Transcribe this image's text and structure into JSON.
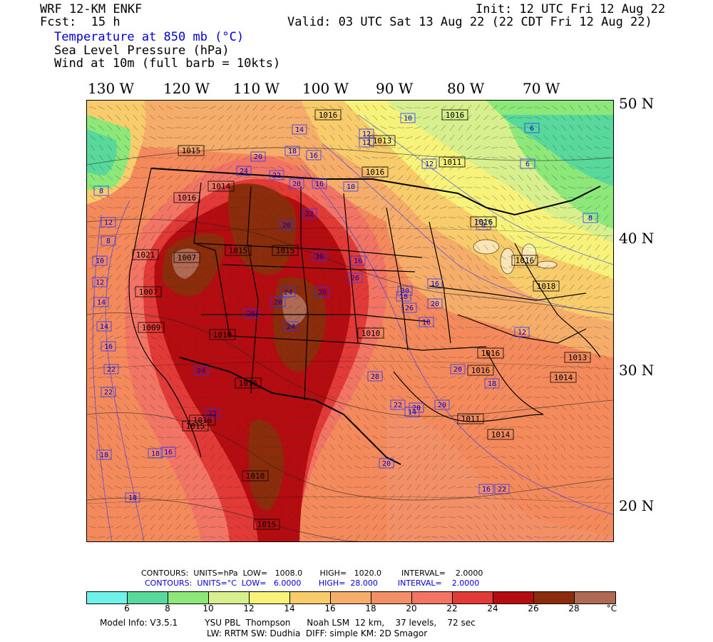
{
  "header": {
    "model": "WRF 12-KM ENKF",
    "fcst": "Fcst:  15 h",
    "init": "Init: 12 UTC Fri 12 Aug 22",
    "valid": "Valid: 03 UTC Sat 13 Aug 22 (22 CDT Fri 12 Aug 22)",
    "field1": "Temperature at 850 mb (°C)",
    "field2": "Sea Level Pressure (hPa)",
    "field3": "Wind at 10m (full barb = 10kts)"
  },
  "axes": {
    "lon_labels": [
      "130 W",
      "120 W",
      "110 W",
      "100 W",
      "90 W",
      "80 W",
      "70 W"
    ],
    "lat_labels": [
      "50 N",
      "40 N",
      "30 N",
      "20 N"
    ]
  },
  "map_labels": {
    "pressure_boxes": [
      "1016",
      "1016",
      "1015",
      "1013",
      "1014",
      "1016",
      "1016",
      "1011",
      "1016",
      "1021",
      "1007",
      "1015",
      "1015",
      "1007",
      "1009",
      "1010",
      "1010",
      "1016",
      "1018",
      "1016",
      "1013",
      "1016",
      "1016",
      "1016",
      "1014",
      "1015",
      "1010",
      "1015",
      "1011",
      "1014"
    ],
    "temp_boxes": [
      "10",
      "14",
      "12",
      "10",
      "6",
      "6",
      "8",
      "20",
      "18",
      "16",
      "12",
      "12",
      "8",
      "8",
      "12",
      "8",
      "24",
      "22",
      "20",
      "16",
      "22",
      "26",
      "30",
      "16",
      "10",
      "12",
      "14",
      "14",
      "16",
      "22",
      "30",
      "18",
      "18",
      "20",
      "28",
      "26",
      "24",
      "20",
      "16",
      "20",
      "14",
      "12",
      "22",
      "24",
      "20",
      "22",
      "28",
      "24",
      "22",
      "20",
      "20",
      "26",
      "18",
      "18",
      "16",
      "18",
      "16",
      "22",
      "18",
      "20"
    ]
  },
  "contour_info": {
    "slp_line": "CONTOURS:  UNITS=hPa  LOW=   1008.0       HIGH=   1020.0        INTERVAL=    2.0000",
    "temp_line": "CONTOURS:  UNITS=°C  LOW=   6.0000       HIGH=  28.000        INTERVAL=    2.0000"
  },
  "colorbar": {
    "colors": [
      "#6ff2ea",
      "#58d99b",
      "#8de87a",
      "#d7ef8c",
      "#f7f37a",
      "#f8cc6a",
      "#f6ad6a",
      "#f38f67",
      "#f27464",
      "#e23a36",
      "#b40c10",
      "#8b2c0a",
      "#b06a53"
    ],
    "ticks": [
      "6",
      "8",
      "10",
      "12",
      "14",
      "16",
      "18",
      "20",
      "22",
      "24",
      "26",
      "28"
    ],
    "unit": "°C"
  },
  "footer": {
    "line1": "Model Info: V3.5.1          YSU PBL  Thompson      Noah LSM  12 km,    37 levels,    72 sec",
    "line2": "LW: RRTM SW: Dudhia  DIFF: simple KM: 2D Smagor"
  }
}
